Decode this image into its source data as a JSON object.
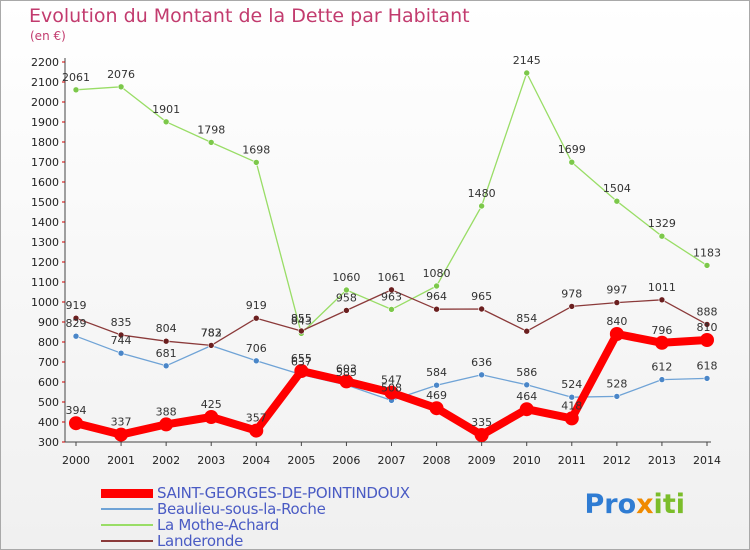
{
  "chart_data": {
    "type": "line",
    "title": "Evolution du Montant de la Dette par Habitant",
    "subtitle": "(en €)",
    "x": [
      "2000",
      "2001",
      "2002",
      "2003",
      "2004",
      "2005",
      "2006",
      "2007",
      "2008",
      "2009",
      "2010",
      "2011",
      "2012",
      "2013",
      "2014"
    ],
    "ylim": [
      300,
      2200
    ],
    "yticks": [
      300,
      400,
      500,
      600,
      700,
      800,
      900,
      1000,
      1100,
      1200,
      1300,
      1400,
      1500,
      1600,
      1700,
      1800,
      1900,
      2000,
      2100,
      2200
    ],
    "grid": false,
    "legend_position": "bottom-left",
    "series": [
      {
        "name": "SAINT-GEORGES-DE-POINTINDOUX",
        "color": "#ff0000",
        "marker": "#ff0000",
        "width": 8,
        "radius": 6.5,
        "values": [
          394,
          337,
          388,
          425,
          357,
          655,
          603,
          547,
          469,
          335,
          464,
          418,
          840,
          796,
          810
        ],
        "labels": [
          "394",
          "337",
          "388",
          "425",
          "357",
          "655",
          "603",
          "547",
          "469",
          "335",
          "464",
          "418",
          "840",
          "796",
          "810"
        ]
      },
      {
        "name": "Beaulieu-sous-la-Roche",
        "color": "#6fa3d6",
        "marker": "#4a86c8",
        "width": 1.3,
        "radius": 3,
        "values": [
          829,
          744,
          681,
          782,
          706,
          637,
          585,
          508,
          584,
          636,
          586,
          524,
          528,
          612,
          618
        ],
        "labels": [
          "829",
          "744",
          "681",
          "782",
          "706",
          "637",
          "585",
          "508",
          "584",
          "636",
          "586",
          "524",
          "528",
          "612",
          "618"
        ]
      },
      {
        "name": "La Mothe-Achard",
        "color": "#99dd66",
        "marker": "#7cc84a",
        "width": 1.3,
        "radius": 3,
        "values": [
          2061,
          2076,
          1901,
          1798,
          1698,
          843,
          1060,
          963,
          1080,
          1480,
          2145,
          1699,
          1504,
          1329,
          1183
        ],
        "labels": [
          "2061",
          "2076",
          "1901",
          "1798",
          "1698",
          "843",
          "1060",
          "963",
          "1080",
          "1480",
          "2145",
          "1699",
          "1504",
          "1329",
          "1183"
        ]
      },
      {
        "name": "Landeronde",
        "color": "#8b3a3a",
        "marker": "#6b1f1f",
        "width": 1.3,
        "radius": 3,
        "values": [
          919,
          835,
          804,
          783,
          919,
          855,
          958,
          1061,
          964,
          965,
          854,
          978,
          997,
          1011,
          888
        ],
        "labels": [
          "919",
          "835",
          "804",
          "783",
          "919",
          "855",
          "958",
          "1061",
          "964",
          "965",
          "854",
          "978",
          "997",
          "1011",
          "888"
        ]
      }
    ]
  },
  "legend": {
    "items": [
      {
        "label": "SAINT-GEORGES-DE-POINTINDOUX",
        "color": "#ff0000",
        "thickness": 9
      },
      {
        "label": "Beaulieu-sous-la-Roche",
        "color": "#6fa3d6",
        "thickness": 2
      },
      {
        "label": "La Mothe-Achard",
        "color": "#99dd66",
        "thickness": 2
      },
      {
        "label": "Landeronde",
        "color": "#8b3a3a",
        "thickness": 2
      }
    ]
  },
  "brand": {
    "p1": "Pro",
    "x": "x",
    "i": "i",
    "t": "t",
    "i2": "i"
  }
}
